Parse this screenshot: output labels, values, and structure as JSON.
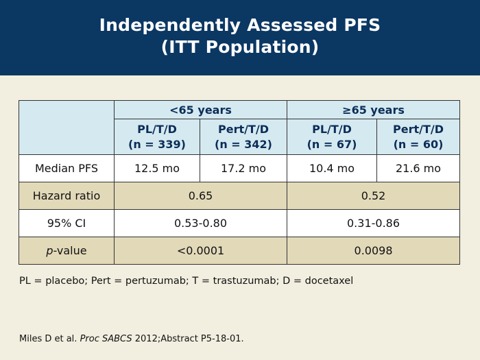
{
  "header": {
    "title_line1": "Independently Assessed PFS",
    "title_line2": "(ITT Population)"
  },
  "table": {
    "groups": [
      "<65 years",
      "≥65 years"
    ],
    "columns": [
      {
        "arm": "PL/T/D",
        "n": "(n = 339)"
      },
      {
        "arm": "Pert/T/D",
        "n": "(n = 342)"
      },
      {
        "arm": "PL/T/D",
        "n": "(n = 67)"
      },
      {
        "arm": "Pert/T/D",
        "n": "(n = 60)"
      }
    ],
    "median_pfs": {
      "label": "Median PFS",
      "values": [
        "12.5 mo",
        "17.2 mo",
        "10.4 mo",
        "21.6 mo"
      ]
    },
    "hazard_ratio": {
      "label": "Hazard ratio",
      "values": [
        "0.65",
        "0.52"
      ]
    },
    "ci": {
      "label": "95% CI",
      "values": [
        "0.53-0.80",
        "0.31-0.86"
      ]
    },
    "p_value": {
      "label_italic": "p",
      "label_rest": "-value",
      "values": [
        "<0.0001",
        "0.0098"
      ]
    }
  },
  "footnote": "PL = placebo; Pert = pertuzumab; T = trastuzumab; D = docetaxel",
  "citation": {
    "authors": "Miles D et al. ",
    "journal": "Proc SABCS",
    "rest": " 2012;Abstract P5-18-01."
  },
  "colors": {
    "header_bg": "#0b3763",
    "page_bg": "#f2efe0",
    "table_header_bg": "#d5e9f0",
    "table_tan_bg": "#e2d9b9"
  }
}
